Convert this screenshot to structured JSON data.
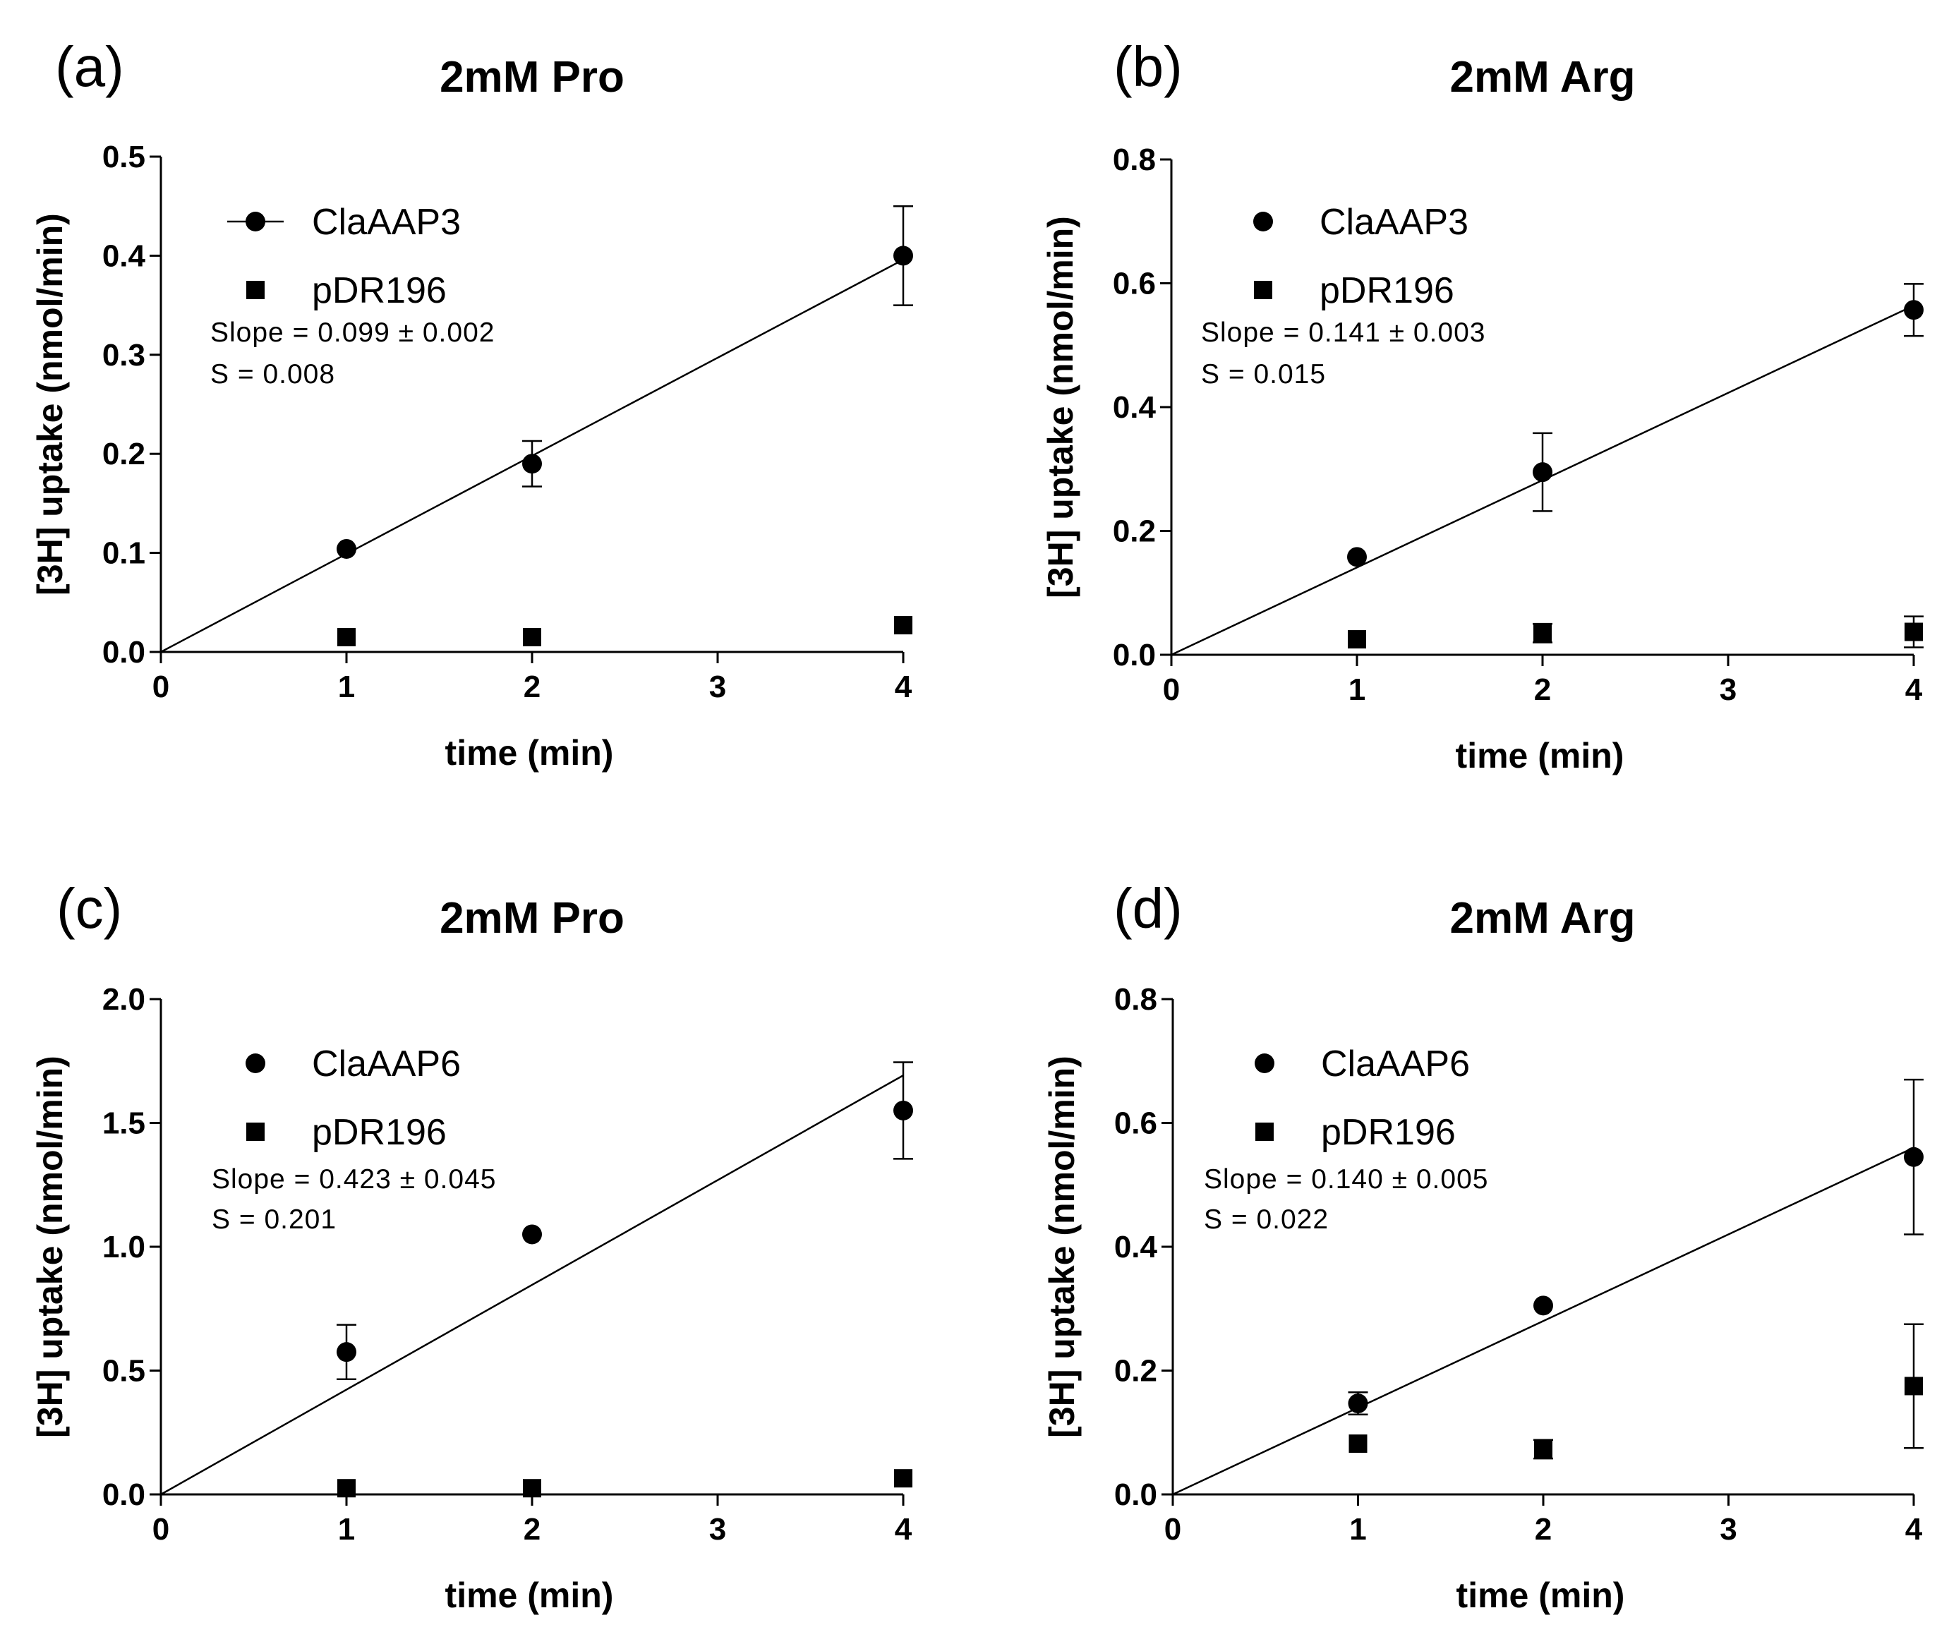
{
  "chart_data": [
    {
      "type": "scatter",
      "panel_label": "(a)",
      "title": "2mM Pro",
      "xlabel": "time (min)",
      "ylabel": "[3H] uptake (nmol/min)",
      "xlim": [
        0,
        4
      ],
      "ylim": [
        0,
        0.5
      ],
      "xticks": [
        0,
        1,
        2,
        3,
        4
      ],
      "xtick_labels": [
        "0",
        "1",
        "2",
        "3",
        "4"
      ],
      "yticks": [
        0,
        0.1,
        0.2,
        0.3,
        0.4,
        0.5
      ],
      "ytick_labels": [
        "0.0",
        "0.1",
        "0.2",
        "0.3",
        "0.4",
        "0.5"
      ],
      "series": [
        {
          "name": "ClaAAP3",
          "marker": "circle",
          "x": [
            1,
            2,
            4
          ],
          "values": [
            0.104,
            0.19,
            0.4
          ],
          "err": [
            0,
            0.023,
            0.05
          ]
        },
        {
          "name": "pDR196",
          "marker": "square",
          "x": [
            1,
            2,
            4
          ],
          "values": [
            0.015,
            0.015,
            0.027
          ],
          "err": [
            0,
            0,
            0
          ]
        }
      ],
      "fit": {
        "slope": 0.099,
        "intercept": 0
      },
      "legend_line": true,
      "annotations": [
        "Slope = 0.099 ± 0.002",
        "S = 0.008"
      ]
    },
    {
      "type": "scatter",
      "panel_label": "(b)",
      "title": "2mM Arg",
      "xlabel": "time (min)",
      "ylabel": "[3H] uptake (nmol/min)",
      "xlim": [
        0,
        4
      ],
      "ylim": [
        0,
        0.8
      ],
      "xticks": [
        0,
        1,
        2,
        3,
        4
      ],
      "xtick_labels": [
        "0",
        "1",
        "2",
        "3",
        "4"
      ],
      "yticks": [
        0,
        0.2,
        0.4,
        0.6,
        0.8
      ],
      "ytick_labels": [
        "0.0",
        "0.2",
        "0.4",
        "0.6",
        "0.8"
      ],
      "series": [
        {
          "name": "ClaAAP3",
          "marker": "circle",
          "x": [
            1,
            2,
            4
          ],
          "values": [
            0.158,
            0.295,
            0.557
          ],
          "err": [
            0,
            0.063,
            0.042
          ]
        },
        {
          "name": "pDR196",
          "marker": "square",
          "x": [
            1,
            2,
            4
          ],
          "values": [
            0.025,
            0.035,
            0.037
          ],
          "err": [
            0,
            0.015,
            0.025
          ]
        }
      ],
      "fit": {
        "slope": 0.141,
        "intercept": 0
      },
      "legend_line": false,
      "annotations": [
        "Slope = 0.141 ± 0.003",
        "S = 0.015"
      ]
    },
    {
      "type": "scatter",
      "panel_label": "(c)",
      "title": "2mM Pro",
      "xlabel": "time (min)",
      "ylabel": "[3H] uptake (nmol/min)",
      "xlim": [
        0,
        4
      ],
      "ylim": [
        0,
        2.0
      ],
      "xticks": [
        0,
        1,
        2,
        3,
        4
      ],
      "xtick_labels": [
        "0",
        "1",
        "2",
        "3",
        "4"
      ],
      "yticks": [
        0,
        0.5,
        1.0,
        1.5,
        2.0
      ],
      "ytick_labels": [
        "0.0",
        "0.5",
        "1.0",
        "1.5",
        "2.0"
      ],
      "series": [
        {
          "name": "ClaAAP6",
          "marker": "circle",
          "x": [
            1,
            2,
            4
          ],
          "values": [
            0.575,
            1.05,
            1.55
          ],
          "err": [
            0.11,
            0,
            0.195
          ]
        },
        {
          "name": "pDR196",
          "marker": "square",
          "x": [
            1,
            2,
            4
          ],
          "values": [
            0.025,
            0.025,
            0.065
          ],
          "err": [
            0,
            0,
            0
          ]
        }
      ],
      "fit": {
        "slope": 0.423,
        "intercept": 0
      },
      "legend_line": false,
      "annotations": [
        "Slope = 0.423 ± 0.045",
        "S = 0.201"
      ]
    },
    {
      "type": "scatter",
      "panel_label": "(d)",
      "title": "2mM Arg",
      "xlabel": "time (min)",
      "ylabel": "[3H] uptake (nmol/min)",
      "xlim": [
        0,
        4
      ],
      "ylim": [
        0,
        0.8
      ],
      "xticks": [
        0,
        1,
        2,
        3,
        4
      ],
      "xtick_labels": [
        "0",
        "1",
        "2",
        "3",
        "4"
      ],
      "yticks": [
        0,
        0.2,
        0.4,
        0.6,
        0.8
      ],
      "ytick_labels": [
        "0.0",
        "0.2",
        "0.4",
        "0.6",
        "0.8"
      ],
      "series": [
        {
          "name": "ClaAAP6",
          "marker": "circle",
          "x": [
            1,
            2,
            4
          ],
          "values": [
            0.147,
            0.305,
            0.545
          ],
          "err": [
            0.018,
            0,
            0.125
          ]
        },
        {
          "name": "pDR196",
          "marker": "square",
          "x": [
            1,
            2,
            4
          ],
          "values": [
            0.082,
            0.073,
            0.175
          ],
          "err": [
            0,
            0.015,
            0.1
          ]
        }
      ],
      "fit": {
        "slope": 0.14,
        "intercept": 0
      },
      "legend_line": false,
      "annotations": [
        "Slope = 0.140 ± 0.005",
        "S = 0.022"
      ]
    }
  ]
}
